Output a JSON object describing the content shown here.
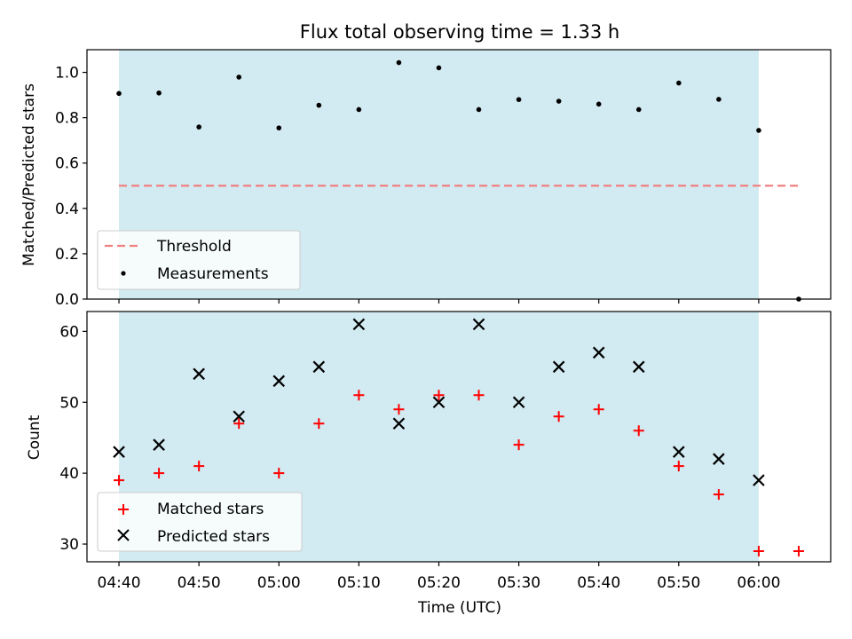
{
  "title": "Flux total observing time = 1.33 h",
  "xlabel": "Time (UTC)",
  "x_ticks": [
    {
      "t": 280,
      "label": "04:40"
    },
    {
      "t": 290,
      "label": "04:50"
    },
    {
      "t": 300,
      "label": "05:00"
    },
    {
      "t": 310,
      "label": "05:10"
    },
    {
      "t": 320,
      "label": "05:20"
    },
    {
      "t": 330,
      "label": "05:30"
    },
    {
      "t": 340,
      "label": "05:40"
    },
    {
      "t": 350,
      "label": "05:50"
    },
    {
      "t": 360,
      "label": "06:00"
    }
  ],
  "shade_color": "#add8e6",
  "chart_data": [
    {
      "type": "scatter",
      "ylabel": "Matched/Predicted stars",
      "ylim": [
        0,
        1.1
      ],
      "y_ticks": [
        0.0,
        0.2,
        0.4,
        0.6,
        0.8,
        1.0
      ],
      "y_tick_labels": [
        "0.0",
        "0.2",
        "0.4",
        "0.6",
        "0.8",
        "1.0"
      ],
      "xlim": [
        "04:36",
        "06:09"
      ],
      "shaded_region": [
        "04:40",
        "06:00"
      ],
      "legend": {
        "position": "lower left",
        "entries": [
          "Threshold",
          "Measurements"
        ]
      },
      "threshold": {
        "name": "Threshold",
        "value": 0.5,
        "x": [
          "04:40",
          "06:05"
        ],
        "color": "#f08080",
        "style": "dashed"
      },
      "series": [
        {
          "name": "Measurements",
          "marker": "dot",
          "color": "#000000",
          "x": [
            "04:40",
            "04:45",
            "04:50",
            "04:55",
            "05:00",
            "05:05",
            "05:10",
            "05:15",
            "05:20",
            "05:25",
            "05:30",
            "05:35",
            "05:40",
            "05:45",
            "05:50",
            "05:55",
            "06:00",
            "06:05"
          ],
          "y": [
            0.907,
            0.909,
            0.759,
            0.979,
            0.755,
            0.855,
            0.836,
            1.043,
            1.02,
            0.836,
            0.88,
            0.873,
            0.86,
            0.836,
            0.953,
            0.881,
            0.744,
            0.0
          ]
        }
      ]
    },
    {
      "type": "scatter",
      "ylabel": "Count",
      "ylim": [
        27.5,
        62.8
      ],
      "y_ticks": [
        30,
        40,
        50,
        60
      ],
      "y_tick_labels": [
        "30",
        "40",
        "50",
        "60"
      ],
      "xlim": [
        "04:36",
        "06:09"
      ],
      "shaded_region": [
        "04:40",
        "06:00"
      ],
      "legend": {
        "position": "lower left",
        "entries": [
          "Matched stars",
          "Predicted stars"
        ]
      },
      "series": [
        {
          "name": "Matched stars",
          "marker": "plus",
          "color": "#ff0000",
          "x": [
            "04:40",
            "04:45",
            "04:50",
            "04:55",
            "05:00",
            "05:05",
            "05:10",
            "05:15",
            "05:20",
            "05:25",
            "05:30",
            "05:35",
            "05:40",
            "05:45",
            "05:50",
            "05:55",
            "06:00",
            "06:05"
          ],
          "y": [
            39,
            40,
            41,
            47,
            40,
            47,
            51,
            49,
            51,
            51,
            44,
            48,
            49,
            46,
            41,
            37,
            29,
            29
          ]
        },
        {
          "name": "Predicted stars",
          "marker": "x",
          "color": "#000000",
          "x": [
            "04:40",
            "04:45",
            "04:50",
            "04:55",
            "05:00",
            "05:05",
            "05:10",
            "05:15",
            "05:20",
            "05:25",
            "05:30",
            "05:35",
            "05:40",
            "05:45",
            "05:50",
            "05:55",
            "06:00"
          ],
          "y": [
            43,
            44,
            54,
            48,
            53,
            55,
            61,
            47,
            50,
            61,
            50,
            55,
            57,
            55,
            43,
            42,
            39
          ]
        }
      ]
    }
  ]
}
